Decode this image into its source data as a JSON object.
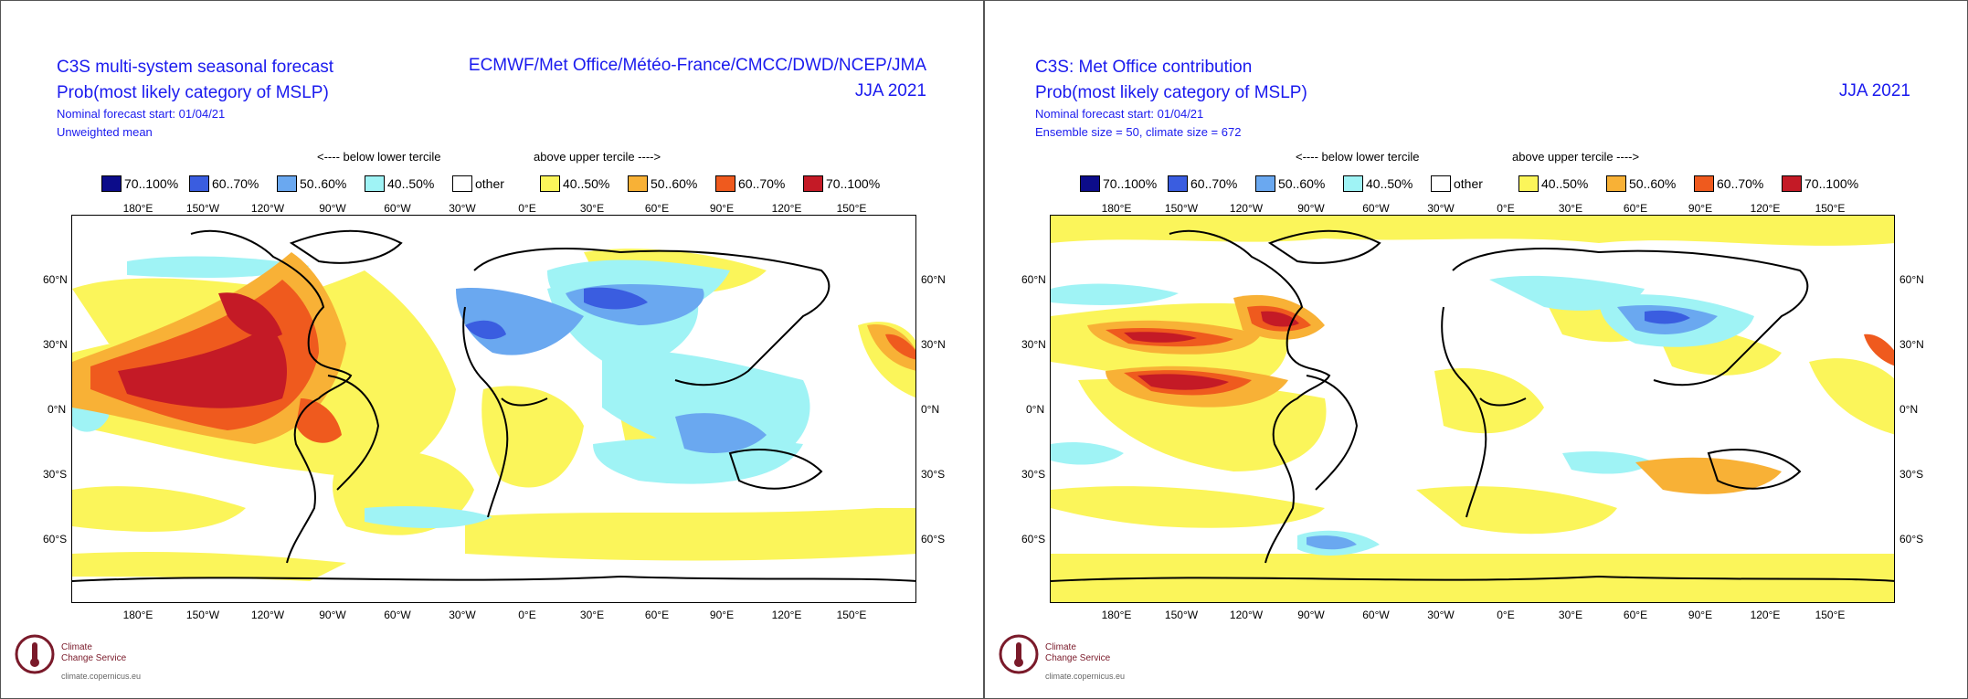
{
  "colors": {
    "below_70_100": "#0c0c8a",
    "below_60_70": "#3a5de0",
    "below_50_60": "#6aa8f0",
    "below_40_50": "#9ff3f5",
    "other": "#ffffff",
    "above_40_50": "#fbf55a",
    "above_50_60": "#f8b136",
    "above_60_70": "#ef5a1e",
    "above_70_100": "#c41a26",
    "title": "#1a1aee",
    "coast": "#000000"
  },
  "legend": {
    "below_label": "<---- below lower tercile",
    "above_label": "above upper tercile ---->",
    "items": [
      {
        "label": "70..100%",
        "color_key": "below_70_100"
      },
      {
        "label": "60..70%",
        "color_key": "below_60_70"
      },
      {
        "label": "50..60%",
        "color_key": "below_50_60"
      },
      {
        "label": "40..50%",
        "color_key": "below_40_50"
      },
      {
        "label": "other",
        "color_key": "other"
      },
      {
        "label": "40..50%",
        "color_key": "above_40_50"
      },
      {
        "label": "50..60%",
        "color_key": "above_50_60"
      },
      {
        "label": "60..70%",
        "color_key": "above_60_70"
      },
      {
        "label": "70..100%",
        "color_key": "above_70_100"
      }
    ]
  },
  "lon_labels": [
    "180°E",
    "150°W",
    "120°W",
    "90°W",
    "60°W",
    "30°W",
    "0°E",
    "30°E",
    "60°E",
    "90°E",
    "120°E",
    "150°E"
  ],
  "lat_labels": [
    "60°N",
    "30°N",
    "0°N",
    "30°S",
    "60°S"
  ],
  "logo": {
    "line1": "Climate",
    "line2": "Change Service",
    "url": "climate.copernicus.eu"
  },
  "panels": [
    {
      "title1": "C3S multi-system seasonal forecast",
      "title2": "Prob(most likely category of MSLP)",
      "subtitle1": "Nominal forecast start: 01/04/21",
      "subtitle2": "Unweighted mean",
      "right1": "ECMWF/Met Office/Météo-France/CMCC/DWD/NCEP/JMA",
      "right2": "JJA 2021"
    },
    {
      "title1": "C3S: Met Office contribution",
      "title2": "Prob(most likely category of MSLP)",
      "subtitle1": "Nominal forecast start: 01/04/21",
      "subtitle2": "Ensemble size = 50, climate size = 672",
      "right1": "",
      "right2": "JJA 2021"
    }
  ]
}
